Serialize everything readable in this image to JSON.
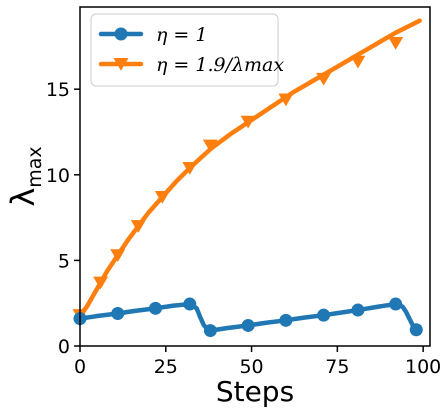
{
  "chart_data": {
    "type": "line",
    "title": "",
    "xlabel": "Steps",
    "ylabel": "λmax",
    "xlim": [
      0,
      102
    ],
    "ylim": [
      0,
      19.8
    ],
    "xticks": [
      0,
      25,
      50,
      75,
      100
    ],
    "yticks": [
      0,
      5,
      10,
      15
    ],
    "grid": false,
    "legend_position": "top-left",
    "series": [
      {
        "name": "η = 1",
        "color": "#1f77b4",
        "marker": "circle",
        "x": [
          0,
          5,
          11,
          16,
          22,
          27,
          32,
          34,
          35,
          36,
          37,
          38,
          43,
          49,
          54,
          60,
          65,
          71,
          76,
          81,
          87,
          92,
          94,
          95,
          96,
          97,
          98
        ],
        "y": [
          1.6,
          1.75,
          1.9,
          2.05,
          2.2,
          2.35,
          2.45,
          2.2,
          1.7,
          1.25,
          1.0,
          0.9,
          1.05,
          1.2,
          1.35,
          1.5,
          1.65,
          1.8,
          1.95,
          2.1,
          2.3,
          2.45,
          2.3,
          2.0,
          1.6,
          1.2,
          0.95
        ],
        "marker_x": [
          0,
          11,
          22,
          32,
          38,
          49,
          60,
          71,
          81,
          92,
          98
        ],
        "marker_y": [
          1.6,
          1.9,
          2.2,
          2.45,
          0.9,
          1.2,
          1.5,
          1.8,
          2.1,
          2.45,
          0.95
        ]
      },
      {
        "name": "η = 1.9/λmax",
        "color": "#ff7f0e",
        "marker": "triangle-down",
        "x": [
          0,
          2,
          4,
          6,
          8,
          11,
          14,
          17,
          20,
          24,
          28,
          32,
          38,
          44,
          50,
          56,
          62,
          68,
          74,
          80,
          86,
          92,
          96,
          99
        ],
        "y": [
          1.8,
          2.3,
          3.0,
          3.7,
          4.4,
          5.3,
          6.2,
          7.0,
          7.8,
          8.7,
          9.6,
          10.4,
          11.5,
          12.4,
          13.2,
          14.0,
          14.8,
          15.5,
          16.2,
          16.9,
          17.6,
          18.3,
          18.7,
          19.0
        ],
        "marker_x": [
          0,
          6,
          11,
          17,
          24,
          32,
          38,
          49,
          60,
          71,
          81,
          92
        ],
        "marker_y": [
          1.8,
          3.7,
          5.3,
          7.0,
          8.7,
          10.4,
          11.7,
          13.1,
          14.4,
          15.6,
          16.6,
          17.7
        ]
      }
    ]
  },
  "legend": {
    "items": [
      {
        "label": "η = 1"
      },
      {
        "label": "η = 1.9/λmax"
      }
    ]
  }
}
